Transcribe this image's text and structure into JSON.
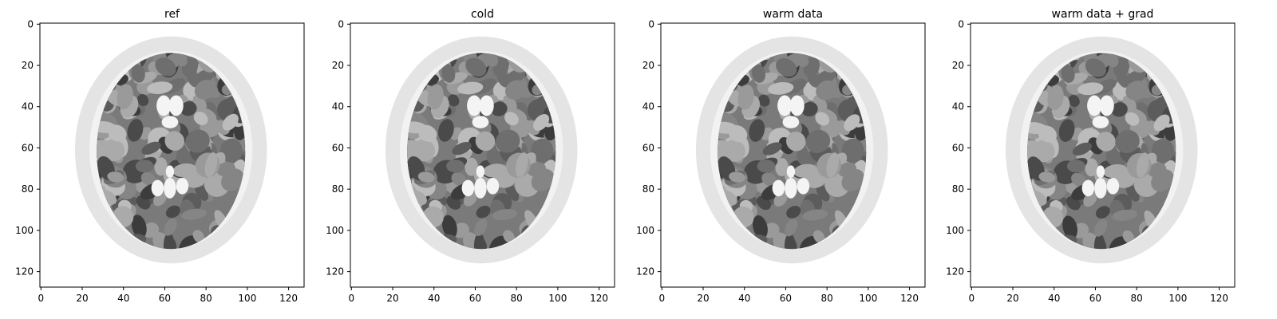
{
  "figure": {
    "panels": [
      {
        "title": "ref",
        "variant": 0
      },
      {
        "title": "cold",
        "variant": 1
      },
      {
        "title": "warm data",
        "variant": 2
      },
      {
        "title": "warm data + grad",
        "variant": 3
      }
    ],
    "image_size": [
      128,
      128
    ],
    "colormap": "gray_r",
    "x_ticks": [
      "0",
      "20",
      "40",
      "60",
      "80",
      "100",
      "120"
    ],
    "y_ticks": [
      "0",
      "20",
      "40",
      "60",
      "80",
      "100",
      "120"
    ],
    "colors": {
      "background": "#ffffff",
      "axis": "#000000",
      "skull": "#e4e4e4",
      "skull_inner": "#f2f2f2",
      "brain_base": "#7a7a7a",
      "tissue_light": "#b0b0b0",
      "tissue_dark": "#3a3a3a",
      "ventricle": "#f4f4f4"
    }
  }
}
